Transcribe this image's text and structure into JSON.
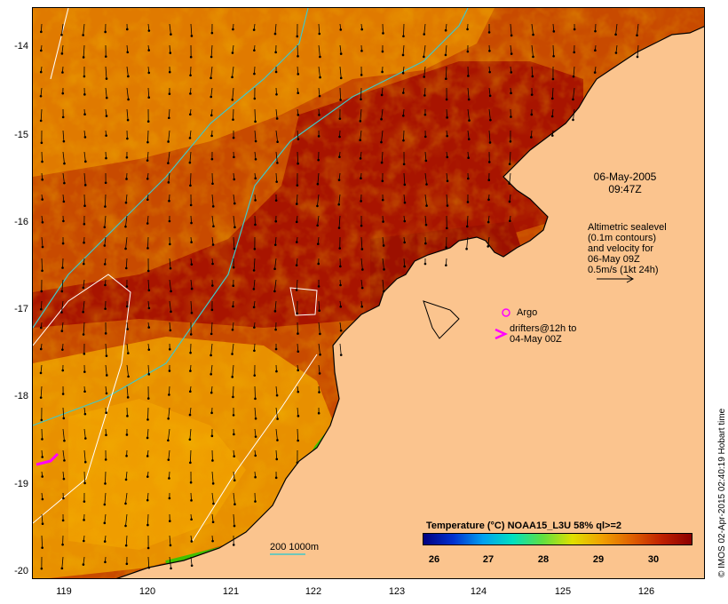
{
  "map": {
    "lat_labels": [
      "-14",
      "-15",
      "-16",
      "-17",
      "-18",
      "-19",
      "-20"
    ],
    "lon_labels": [
      "119",
      "120",
      "121",
      "122",
      "123",
      "124",
      "125",
      "126"
    ],
    "lat_range": [
      -20.1,
      -13.6
    ],
    "lon_range": [
      118.7,
      126.7
    ],
    "colors": {
      "land": "#fbc48e",
      "sst_warm": "#a81400",
      "sst_mid": "#d85400",
      "sst_cool": "#f0a000",
      "cold_edge": "#40c000",
      "isobath": "#40c8c8",
      "contour": "#ffffff",
      "drifter": "#ff00ff"
    }
  },
  "annotations": {
    "date": "06-May-2005",
    "time": "09:47Z",
    "altimetry_lines": [
      "Altimetric sealevel",
      "(0.1m contours)",
      "and velocity for",
      "06-May 09Z",
      "0.5m/s (1kt 24h)"
    ],
    "argo_label": "Argo",
    "drifters_line1": "drifters@12h to",
    "drifters_line2": "04-May 00Z",
    "scale_label": "200  1000m"
  },
  "colorbar": {
    "title": "Temperature (°C) NOAA15_L3U 58% ql>=2",
    "ticks": [
      "26",
      "27",
      "28",
      "29",
      "30"
    ],
    "stops": [
      "#000080",
      "#0030d0",
      "#00a0f0",
      "#00e0c0",
      "#60e040",
      "#e0e000",
      "#f0a000",
      "#e06000",
      "#c02000",
      "#8c0000"
    ]
  },
  "credit": "© IMOS 02-Apr-2015 02:40:19 Hobart time"
}
